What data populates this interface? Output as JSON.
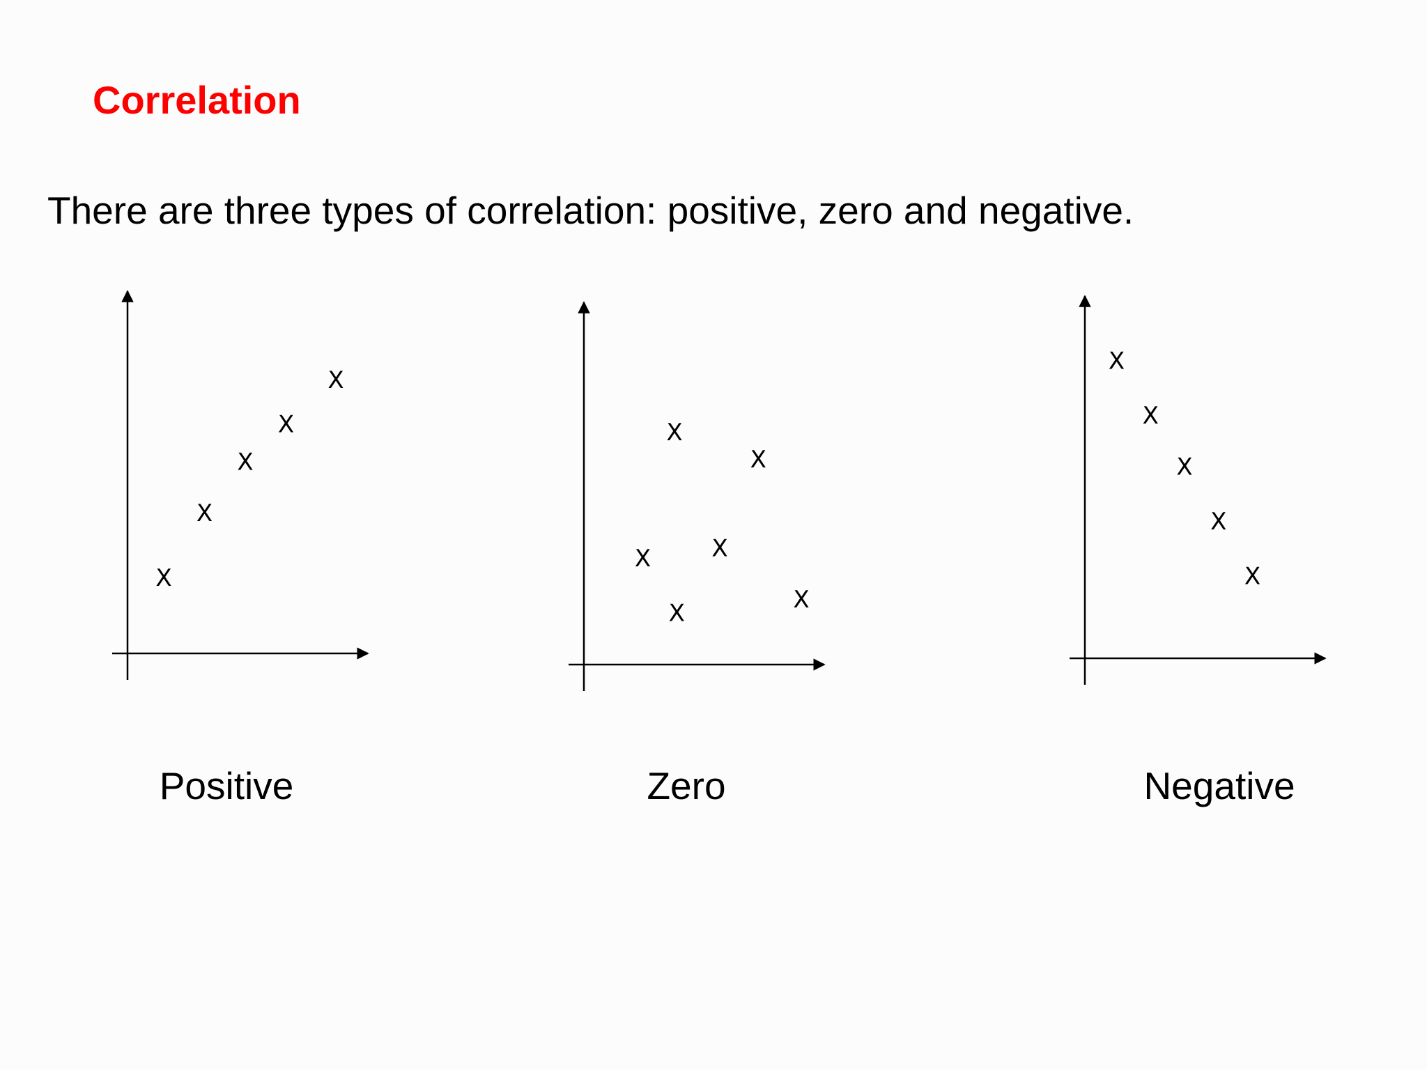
{
  "slide": {
    "title": "Correlation",
    "subtitle": "There are three types of correlation: positive, zero and negative.",
    "title_color": "#ff0000",
    "text_color": "#000000",
    "marker_glyph": "X"
  },
  "chart_data": [
    {
      "type": "scatter",
      "title": "",
      "caption": "Positive",
      "xlabel": "",
      "ylabel": "",
      "xlim": [
        0,
        10
      ],
      "ylim": [
        0,
        10
      ],
      "grid": false,
      "axis_ticks": false,
      "points": [
        {
          "x": 1.6,
          "y": 2.2
        },
        {
          "x": 3.4,
          "y": 4.1
        },
        {
          "x": 5.2,
          "y": 5.6
        },
        {
          "x": 7.0,
          "y": 6.7
        },
        {
          "x": 9.2,
          "y": 8.0
        }
      ]
    },
    {
      "type": "scatter",
      "title": "",
      "caption": "Zero",
      "xlabel": "",
      "ylabel": "",
      "xlim": [
        0,
        10
      ],
      "ylim": [
        0,
        10
      ],
      "grid": false,
      "axis_ticks": false,
      "points": [
        {
          "x": 2.6,
          "y": 3.1
        },
        {
          "x": 4.0,
          "y": 6.8
        },
        {
          "x": 4.1,
          "y": 1.5
        },
        {
          "x": 6.0,
          "y": 3.4
        },
        {
          "x": 7.7,
          "y": 6.0
        },
        {
          "x": 9.6,
          "y": 1.9
        }
      ]
    },
    {
      "type": "scatter",
      "title": "",
      "caption": "Negative",
      "xlabel": "",
      "ylabel": "",
      "xlim": [
        0,
        10
      ],
      "ylim": [
        0,
        10
      ],
      "grid": false,
      "axis_ticks": false,
      "points": [
        {
          "x": 1.4,
          "y": 8.7
        },
        {
          "x": 2.9,
          "y": 7.1
        },
        {
          "x": 4.4,
          "y": 5.6
        },
        {
          "x": 5.9,
          "y": 4.0
        },
        {
          "x": 7.4,
          "y": 2.4
        }
      ]
    }
  ]
}
